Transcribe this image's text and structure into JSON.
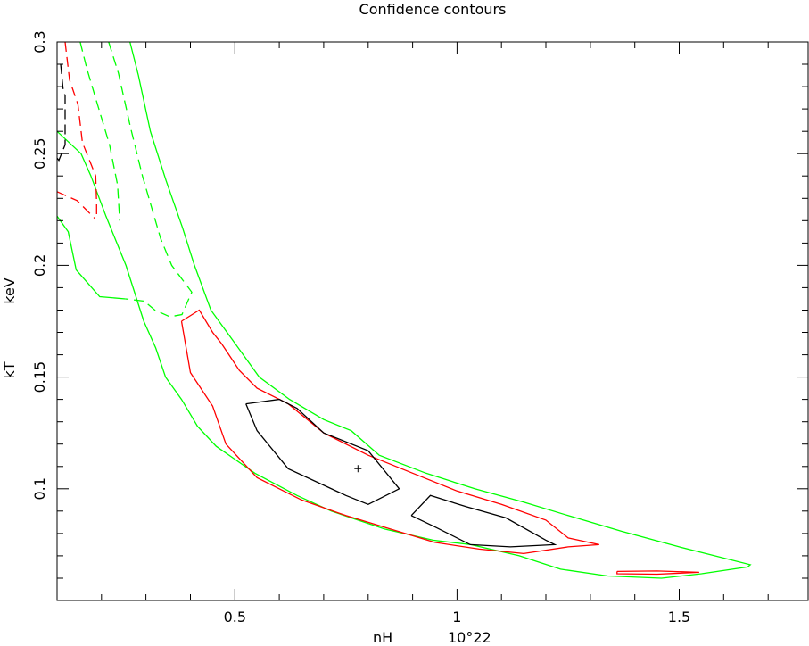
{
  "chart_data": {
    "type": "line",
    "title": "Confidence contours",
    "xlabel": "nH      10^22",
    "xlabel_parts": [
      "nH",
      "10^22"
    ],
    "ylabel_parts": [
      "kT",
      "keV"
    ],
    "xlim": [
      0.1,
      1.79
    ],
    "ylim": [
      0.05,
      0.3
    ],
    "xticks": [
      0.5,
      1,
      1.5
    ],
    "xtick_labels": [
      "0.5",
      "1",
      "1.5"
    ],
    "yticks": [
      0.1,
      0.15,
      0.2,
      0.25,
      0.3
    ],
    "ytick_labels": [
      "0.1",
      "0.15",
      "0.2",
      "0.25",
      "0.3"
    ],
    "grid": false,
    "best_fit": {
      "x": 0.777,
      "y": 0.109,
      "marker": "+"
    },
    "colors": {
      "level1": "#000000",
      "level2": "#ff0000",
      "level3": "#00ff00"
    },
    "series": [
      {
        "color": "#00ff00",
        "dash": false,
        "points": [
          [
            0.264,
            0.3
          ],
          [
            0.283,
            0.285
          ],
          [
            0.31,
            0.26
          ],
          [
            0.345,
            0.238
          ],
          [
            0.382,
            0.217
          ],
          [
            0.409,
            0.2
          ],
          [
            0.446,
            0.18
          ],
          [
            0.497,
            0.166
          ],
          [
            0.555,
            0.15
          ],
          [
            0.623,
            0.14
          ],
          [
            0.7,
            0.131
          ],
          [
            0.762,
            0.126
          ],
          [
            0.825,
            0.115
          ],
          [
            0.93,
            0.107
          ],
          [
            1.04,
            0.1
          ],
          [
            1.15,
            0.094
          ],
          [
            1.25,
            0.088
          ],
          [
            1.37,
            0.081
          ],
          [
            1.5,
            0.074
          ],
          [
            1.66,
            0.066
          ],
          [
            1.654,
            0.065
          ],
          [
            1.55,
            0.062
          ],
          [
            1.46,
            0.06
          ],
          [
            1.339,
            0.061
          ],
          [
            1.233,
            0.064
          ],
          [
            1.14,
            0.07
          ],
          [
            1.031,
            0.075
          ],
          [
            0.946,
            0.077
          ],
          [
            0.837,
            0.082
          ],
          [
            0.717,
            0.09
          ],
          [
            0.64,
            0.097
          ],
          [
            0.545,
            0.107
          ],
          [
            0.458,
            0.119
          ],
          [
            0.416,
            0.128
          ],
          [
            0.38,
            0.14
          ],
          [
            0.344,
            0.15
          ],
          [
            0.322,
            0.163
          ],
          [
            0.295,
            0.175
          ],
          [
            0.255,
            0.2
          ],
          [
            0.21,
            0.222
          ],
          [
            0.176,
            0.24
          ],
          [
            0.154,
            0.25
          ],
          [
            0.1,
            0.26
          ]
        ]
      },
      {
        "color": "#00ff00",
        "dash": false,
        "points": [
          [
            0.1,
            0.222
          ],
          [
            0.125,
            0.215
          ],
          [
            0.143,
            0.198
          ],
          [
            0.196,
            0.186
          ],
          [
            0.254,
            0.185
          ]
        ]
      },
      {
        "color": "#00ff00",
        "dash": true,
        "points": [
          [
            0.216,
            0.3
          ],
          [
            0.238,
            0.286
          ],
          [
            0.265,
            0.262
          ],
          [
            0.292,
            0.24
          ],
          [
            0.333,
            0.212
          ],
          [
            0.358,
            0.2
          ],
          [
            0.403,
            0.188
          ],
          [
            0.403,
            0.188
          ],
          [
            0.381,
            0.178
          ],
          [
            0.354,
            0.177
          ],
          [
            0.32,
            0.18
          ],
          [
            0.296,
            0.184
          ],
          [
            0.254,
            0.185
          ]
        ]
      },
      {
        "color": "#00ff00",
        "dash": true,
        "points": [
          [
            0.152,
            0.3
          ],
          [
            0.167,
            0.288
          ],
          [
            0.194,
            0.27
          ],
          [
            0.218,
            0.254
          ],
          [
            0.236,
            0.236
          ],
          [
            0.241,
            0.22
          ]
        ]
      },
      {
        "color": "#ff0000",
        "dash": false,
        "points": [
          [
            0.38,
            0.175
          ],
          [
            0.42,
            0.18
          ],
          [
            0.45,
            0.17
          ],
          [
            0.47,
            0.165
          ],
          [
            0.51,
            0.153
          ],
          [
            0.55,
            0.145
          ],
          [
            0.62,
            0.138
          ],
          [
            0.7,
            0.125
          ],
          [
            0.8,
            0.115
          ],
          [
            0.9,
            0.107
          ],
          [
            1.0,
            0.099
          ],
          [
            1.1,
            0.093
          ],
          [
            1.2,
            0.086
          ],
          [
            1.25,
            0.078
          ],
          [
            1.32,
            0.075
          ],
          [
            1.25,
            0.074
          ],
          [
            1.15,
            0.071
          ],
          [
            1.05,
            0.073
          ],
          [
            0.95,
            0.076
          ],
          [
            0.85,
            0.082
          ],
          [
            0.75,
            0.088
          ],
          [
            0.65,
            0.095
          ],
          [
            0.55,
            0.105
          ],
          [
            0.48,
            0.12
          ],
          [
            0.45,
            0.137
          ],
          [
            0.4,
            0.152
          ],
          [
            0.38,
            0.175
          ]
        ]
      },
      {
        "color": "#ff0000",
        "dash": false,
        "points": [
          [
            1.36,
            0.063
          ],
          [
            1.45,
            0.0632
          ],
          [
            1.545,
            0.0626
          ],
          [
            1.45,
            0.0618
          ],
          [
            1.36,
            0.062
          ],
          [
            1.36,
            0.063
          ]
        ]
      },
      {
        "color": "#ff0000",
        "dash": true,
        "points": [
          [
            0.118,
            0.3
          ],
          [
            0.128,
            0.283
          ],
          [
            0.147,
            0.272
          ],
          [
            0.157,
            0.255
          ],
          [
            0.187,
            0.24
          ],
          [
            0.189,
            0.228
          ],
          [
            0.189,
            0.222
          ],
          [
            0.186,
            0.222
          ]
        ]
      },
      {
        "color": "#ff0000",
        "dash": true,
        "points": [
          [
            0.1,
            0.233
          ],
          [
            0.145,
            0.229
          ],
          [
            0.185,
            0.221
          ]
        ]
      },
      {
        "color": "#000000",
        "dash": false,
        "points": [
          [
            0.525,
            0.138
          ],
          [
            0.6,
            0.14
          ],
          [
            0.64,
            0.136
          ],
          [
            0.7,
            0.125
          ],
          [
            0.8,
            0.117
          ],
          [
            0.87,
            0.1
          ],
          [
            0.8,
            0.093
          ],
          [
            0.75,
            0.097
          ],
          [
            0.62,
            0.109
          ],
          [
            0.55,
            0.126
          ],
          [
            0.525,
            0.138
          ]
        ]
      },
      {
        "color": "#000000",
        "dash": false,
        "points": [
          [
            0.897,
            0.088
          ],
          [
            0.94,
            0.097
          ],
          [
            1.02,
            0.092
          ],
          [
            1.11,
            0.087
          ],
          [
            1.2,
            0.077
          ],
          [
            1.22,
            0.075
          ],
          [
            1.12,
            0.074
          ],
          [
            1.03,
            0.075
          ],
          [
            0.95,
            0.083
          ],
          [
            0.897,
            0.088
          ]
        ]
      },
      {
        "color": "#000000",
        "dash": true,
        "points": [
          [
            0.108,
            0.29
          ],
          [
            0.114,
            0.278
          ],
          [
            0.118,
            0.276
          ],
          [
            0.118,
            0.254
          ],
          [
            0.104,
            0.247
          ],
          [
            0.1,
            0.248
          ]
        ]
      }
    ]
  }
}
